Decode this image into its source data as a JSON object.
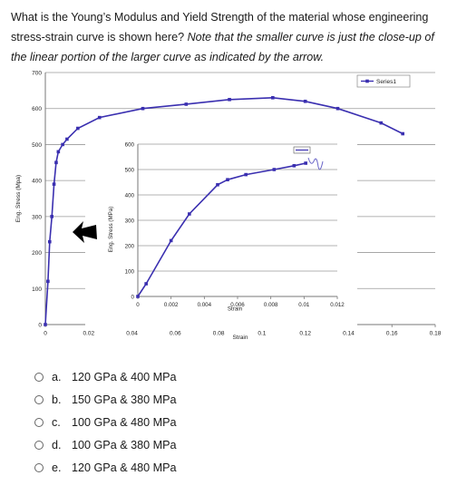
{
  "question": {
    "text": "What is the Young’s Modulus and Yield Strength of the material whose engineering stress-strain curve is shown here?",
    "note": "Note that the smaller curve is just the close-up of the linear portion of the larger curve as indicated by the arrow."
  },
  "chart_data": [
    {
      "type": "line",
      "xlabel": "Strain",
      "ylabel": "Eng. Stress (Mpa)",
      "xlim": [
        0,
        0.18
      ],
      "ylim": [
        0,
        700
      ],
      "x_ticks": [
        "0",
        "0.02",
        "0.04",
        "0.06",
        "0.08",
        "0.1",
        "0.12",
        "0.14",
        "0.16",
        "0.18"
      ],
      "y_ticks": [
        "0",
        "100",
        "200",
        "300",
        "400",
        "500",
        "600",
        "700"
      ],
      "legend": "top-right",
      "grid": true,
      "series": [
        {
          "name": "Series1",
          "color": "#3a2fb0",
          "points": [
            [
              0,
              0
            ],
            [
              0.0012,
              120
            ],
            [
              0.002,
              230
            ],
            [
              0.003,
              300
            ],
            [
              0.004,
              390
            ],
            [
              0.005,
              450
            ],
            [
              0.006,
              480
            ],
            [
              0.008,
              500
            ],
            [
              0.01,
              515
            ],
            [
              0.015,
              545
            ],
            [
              0.025,
              575
            ],
            [
              0.045,
              600
            ],
            [
              0.065,
              612
            ],
            [
              0.085,
              625
            ],
            [
              0.105,
              630
            ],
            [
              0.12,
              620
            ],
            [
              0.135,
              600
            ],
            [
              0.155,
              560
            ],
            [
              0.165,
              530
            ]
          ]
        }
      ]
    },
    {
      "type": "line",
      "xlabel": "Strain",
      "ylabel": "Eng. Stress (MPa)",
      "xlim": [
        0,
        0.012
      ],
      "ylim": [
        0,
        600
      ],
      "x_ticks": [
        "0",
        "0.002",
        "0.004",
        "0.006",
        "0.008",
        "0.01",
        "0.012"
      ],
      "y_ticks": [
        "0",
        "100",
        "200",
        "300",
        "400",
        "500",
        "600"
      ],
      "grid": true,
      "series": [
        {
          "color": "#3a2fb0",
          "points": [
            [
              0,
              0
            ],
            [
              0.0005,
              50
            ],
            [
              0.002,
              220
            ],
            [
              0.0031,
              325
            ],
            [
              0.0048,
              440
            ],
            [
              0.0054,
              460
            ],
            [
              0.0065,
              480
            ],
            [
              0.0082,
              500
            ],
            [
              0.0094,
              515
            ],
            [
              0.0101,
              525
            ]
          ]
        }
      ]
    }
  ],
  "options": [
    {
      "letter": "a.",
      "label": "120 GPa & 400 MPa"
    },
    {
      "letter": "b.",
      "label": "150 GPa & 380 MPa"
    },
    {
      "letter": "c.",
      "label": "100 GPa & 480 MPa"
    },
    {
      "letter": "d.",
      "label": "100 GPa & 380 MPa"
    },
    {
      "letter": "e.",
      "label": "120 GPa & 480 MPa"
    }
  ],
  "colors": {
    "series": "#3a2fb0",
    "grid": "#9a9a9a",
    "arrow": "#000000"
  },
  "icons": {
    "arrow": "right-arrow-icon",
    "radio": "radio-button-icon"
  }
}
